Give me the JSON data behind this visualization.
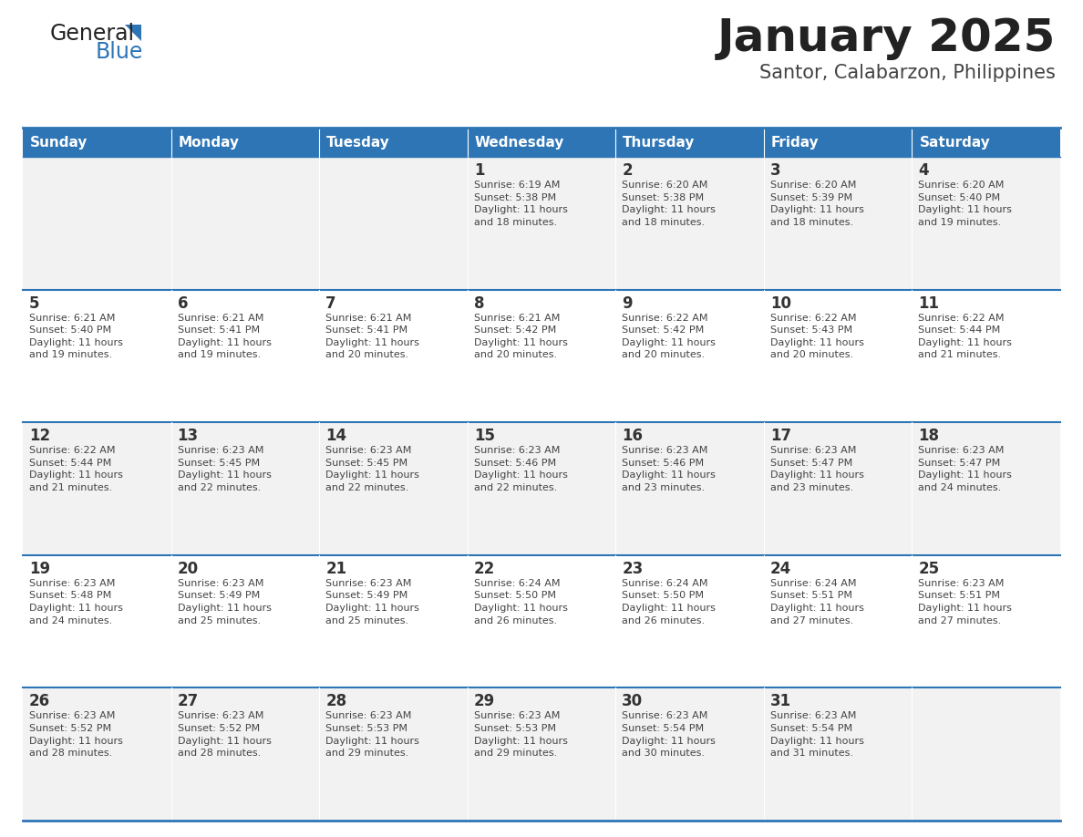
{
  "title": "January 2025",
  "subtitle": "Santor, Calabarzon, Philippines",
  "header_bg": "#2E75B6",
  "header_text_color": "#FFFFFF",
  "odd_row_bg": "#F2F2F2",
  "even_row_bg": "#FFFFFF",
  "day_headers": [
    "Sunday",
    "Monday",
    "Tuesday",
    "Wednesday",
    "Thursday",
    "Friday",
    "Saturday"
  ],
  "row_separator_color": "#2E75B6",
  "day_number_color": "#333333",
  "cell_text_color": "#444444",
  "title_color": "#222222",
  "subtitle_color": "#444444",
  "logo_general_color": "#222222",
  "logo_blue_color": "#2E75B6",
  "logo_triangle_color": "#2E75B6",
  "calendar_data": [
    [
      {
        "day": "",
        "sunrise": "",
        "sunset": "",
        "daylight": ""
      },
      {
        "day": "",
        "sunrise": "",
        "sunset": "",
        "daylight": ""
      },
      {
        "day": "",
        "sunrise": "",
        "sunset": "",
        "daylight": ""
      },
      {
        "day": "1",
        "sunrise": "Sunrise: 6:19 AM",
        "sunset": "Sunset: 5:38 PM",
        "daylight": "Daylight: 11 hours\nand 18 minutes."
      },
      {
        "day": "2",
        "sunrise": "Sunrise: 6:20 AM",
        "sunset": "Sunset: 5:38 PM",
        "daylight": "Daylight: 11 hours\nand 18 minutes."
      },
      {
        "day": "3",
        "sunrise": "Sunrise: 6:20 AM",
        "sunset": "Sunset: 5:39 PM",
        "daylight": "Daylight: 11 hours\nand 18 minutes."
      },
      {
        "day": "4",
        "sunrise": "Sunrise: 6:20 AM",
        "sunset": "Sunset: 5:40 PM",
        "daylight": "Daylight: 11 hours\nand 19 minutes."
      }
    ],
    [
      {
        "day": "5",
        "sunrise": "Sunrise: 6:21 AM",
        "sunset": "Sunset: 5:40 PM",
        "daylight": "Daylight: 11 hours\nand 19 minutes."
      },
      {
        "day": "6",
        "sunrise": "Sunrise: 6:21 AM",
        "sunset": "Sunset: 5:41 PM",
        "daylight": "Daylight: 11 hours\nand 19 minutes."
      },
      {
        "day": "7",
        "sunrise": "Sunrise: 6:21 AM",
        "sunset": "Sunset: 5:41 PM",
        "daylight": "Daylight: 11 hours\nand 20 minutes."
      },
      {
        "day": "8",
        "sunrise": "Sunrise: 6:21 AM",
        "sunset": "Sunset: 5:42 PM",
        "daylight": "Daylight: 11 hours\nand 20 minutes."
      },
      {
        "day": "9",
        "sunrise": "Sunrise: 6:22 AM",
        "sunset": "Sunset: 5:42 PM",
        "daylight": "Daylight: 11 hours\nand 20 minutes."
      },
      {
        "day": "10",
        "sunrise": "Sunrise: 6:22 AM",
        "sunset": "Sunset: 5:43 PM",
        "daylight": "Daylight: 11 hours\nand 20 minutes."
      },
      {
        "day": "11",
        "sunrise": "Sunrise: 6:22 AM",
        "sunset": "Sunset: 5:44 PM",
        "daylight": "Daylight: 11 hours\nand 21 minutes."
      }
    ],
    [
      {
        "day": "12",
        "sunrise": "Sunrise: 6:22 AM",
        "sunset": "Sunset: 5:44 PM",
        "daylight": "Daylight: 11 hours\nand 21 minutes."
      },
      {
        "day": "13",
        "sunrise": "Sunrise: 6:23 AM",
        "sunset": "Sunset: 5:45 PM",
        "daylight": "Daylight: 11 hours\nand 22 minutes."
      },
      {
        "day": "14",
        "sunrise": "Sunrise: 6:23 AM",
        "sunset": "Sunset: 5:45 PM",
        "daylight": "Daylight: 11 hours\nand 22 minutes."
      },
      {
        "day": "15",
        "sunrise": "Sunrise: 6:23 AM",
        "sunset": "Sunset: 5:46 PM",
        "daylight": "Daylight: 11 hours\nand 22 minutes."
      },
      {
        "day": "16",
        "sunrise": "Sunrise: 6:23 AM",
        "sunset": "Sunset: 5:46 PM",
        "daylight": "Daylight: 11 hours\nand 23 minutes."
      },
      {
        "day": "17",
        "sunrise": "Sunrise: 6:23 AM",
        "sunset": "Sunset: 5:47 PM",
        "daylight": "Daylight: 11 hours\nand 23 minutes."
      },
      {
        "day": "18",
        "sunrise": "Sunrise: 6:23 AM",
        "sunset": "Sunset: 5:47 PM",
        "daylight": "Daylight: 11 hours\nand 24 minutes."
      }
    ],
    [
      {
        "day": "19",
        "sunrise": "Sunrise: 6:23 AM",
        "sunset": "Sunset: 5:48 PM",
        "daylight": "Daylight: 11 hours\nand 24 minutes."
      },
      {
        "day": "20",
        "sunrise": "Sunrise: 6:23 AM",
        "sunset": "Sunset: 5:49 PM",
        "daylight": "Daylight: 11 hours\nand 25 minutes."
      },
      {
        "day": "21",
        "sunrise": "Sunrise: 6:23 AM",
        "sunset": "Sunset: 5:49 PM",
        "daylight": "Daylight: 11 hours\nand 25 minutes."
      },
      {
        "day": "22",
        "sunrise": "Sunrise: 6:24 AM",
        "sunset": "Sunset: 5:50 PM",
        "daylight": "Daylight: 11 hours\nand 26 minutes."
      },
      {
        "day": "23",
        "sunrise": "Sunrise: 6:24 AM",
        "sunset": "Sunset: 5:50 PM",
        "daylight": "Daylight: 11 hours\nand 26 minutes."
      },
      {
        "day": "24",
        "sunrise": "Sunrise: 6:24 AM",
        "sunset": "Sunset: 5:51 PM",
        "daylight": "Daylight: 11 hours\nand 27 minutes."
      },
      {
        "day": "25",
        "sunrise": "Sunrise: 6:23 AM",
        "sunset": "Sunset: 5:51 PM",
        "daylight": "Daylight: 11 hours\nand 27 minutes."
      }
    ],
    [
      {
        "day": "26",
        "sunrise": "Sunrise: 6:23 AM",
        "sunset": "Sunset: 5:52 PM",
        "daylight": "Daylight: 11 hours\nand 28 minutes."
      },
      {
        "day": "27",
        "sunrise": "Sunrise: 6:23 AM",
        "sunset": "Sunset: 5:52 PM",
        "daylight": "Daylight: 11 hours\nand 28 minutes."
      },
      {
        "day": "28",
        "sunrise": "Sunrise: 6:23 AM",
        "sunset": "Sunset: 5:53 PM",
        "daylight": "Daylight: 11 hours\nand 29 minutes."
      },
      {
        "day": "29",
        "sunrise": "Sunrise: 6:23 AM",
        "sunset": "Sunset: 5:53 PM",
        "daylight": "Daylight: 11 hours\nand 29 minutes."
      },
      {
        "day": "30",
        "sunrise": "Sunrise: 6:23 AM",
        "sunset": "Sunset: 5:54 PM",
        "daylight": "Daylight: 11 hours\nand 30 minutes."
      },
      {
        "day": "31",
        "sunrise": "Sunrise: 6:23 AM",
        "sunset": "Sunset: 5:54 PM",
        "daylight": "Daylight: 11 hours\nand 31 minutes."
      },
      {
        "day": "",
        "sunrise": "",
        "sunset": "",
        "daylight": ""
      }
    ]
  ]
}
